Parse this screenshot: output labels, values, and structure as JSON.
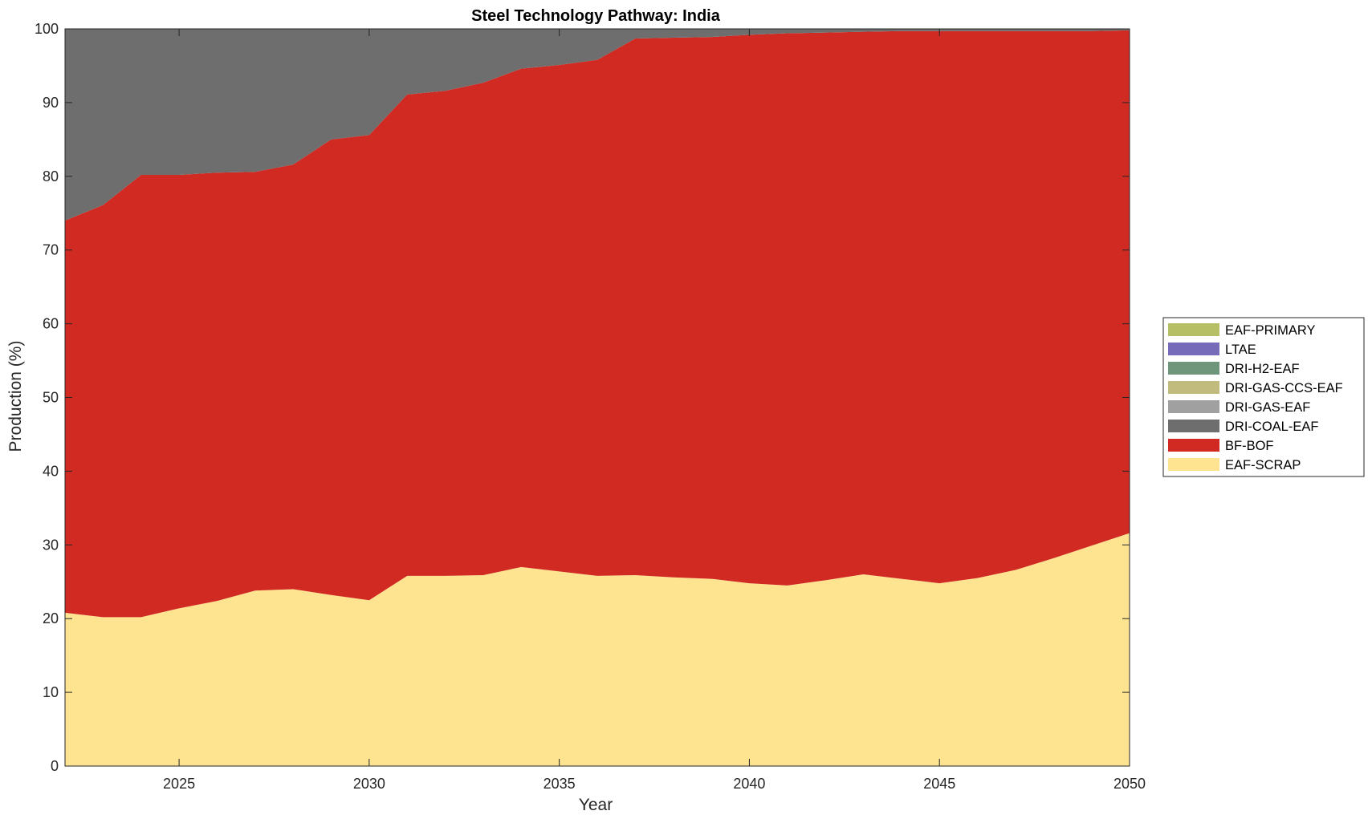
{
  "chart_data": {
    "type": "area",
    "stacked": true,
    "title": "Steel Technology Pathway: India",
    "xlabel": "Year",
    "ylabel": "Production (%)",
    "xlim": [
      2022,
      2050
    ],
    "ylim": [
      0,
      100
    ],
    "xticks": [
      2025,
      2030,
      2035,
      2040,
      2045,
      2050
    ],
    "yticks": [
      0,
      10,
      20,
      30,
      40,
      50,
      60,
      70,
      80,
      90,
      100
    ],
    "grid": false,
    "legend_position": "right",
    "x": [
      2022,
      2023,
      2024,
      2025,
      2026,
      2027,
      2028,
      2029,
      2030,
      2031,
      2032,
      2033,
      2034,
      2035,
      2036,
      2037,
      2038,
      2039,
      2040,
      2041,
      2042,
      2043,
      2044,
      2045,
      2046,
      2047,
      2048,
      2049,
      2050
    ],
    "series": [
      {
        "name": "EAF-SCRAP",
        "color": "#fee391",
        "values": [
          20.8,
          20.2,
          20.2,
          21.4,
          22.4,
          23.8,
          24.0,
          23.2,
          22.5,
          25.8,
          25.8,
          25.9,
          27.0,
          26.4,
          25.8,
          25.9,
          25.6,
          25.4,
          24.8,
          24.5,
          25.2,
          26.0,
          25.4,
          24.8,
          25.5,
          26.6,
          28.2,
          29.9,
          31.6
        ]
      },
      {
        "name": "BF-BOF",
        "color": "#d12a23",
        "values": [
          53.2,
          55.9,
          60.0,
          58.8,
          58.1,
          56.8,
          57.6,
          61.8,
          63.1,
          65.3,
          65.8,
          66.8,
          67.6,
          68.7,
          70.0,
          72.8,
          73.2,
          73.5,
          74.4,
          74.9,
          74.3,
          73.6,
          74.3,
          74.9,
          74.2,
          73.1,
          71.5,
          69.8,
          68.2
        ]
      },
      {
        "name": "DRI-COAL-EAF",
        "color": "#6e6e6e",
        "values": [
          26.0,
          23.9,
          19.8,
          19.8,
          19.5,
          19.4,
          18.4,
          15.0,
          14.4,
          8.9,
          8.4,
          7.3,
          5.4,
          4.9,
          4.2,
          1.3,
          1.2,
          1.1,
          0.8,
          0.6,
          0.5,
          0.4,
          0.3,
          0.3,
          0.3,
          0.3,
          0.3,
          0.3,
          0.2
        ]
      },
      {
        "name": "DRI-GAS-EAF",
        "color": "#a0a0a0",
        "values": [
          0,
          0,
          0,
          0,
          0,
          0,
          0,
          0,
          0,
          0,
          0,
          0,
          0,
          0,
          0,
          0,
          0,
          0,
          0,
          0,
          0,
          0,
          0,
          0,
          0,
          0,
          0,
          0,
          0
        ]
      },
      {
        "name": "DRI-GAS-CCS-EAF",
        "color": "#c2bb7e",
        "values": [
          0,
          0,
          0,
          0,
          0,
          0,
          0,
          0,
          0,
          0,
          0,
          0,
          0,
          0,
          0,
          0,
          0,
          0,
          0,
          0,
          0,
          0,
          0,
          0,
          0,
          0,
          0,
          0,
          0
        ]
      },
      {
        "name": "DRI-H2-EAF",
        "color": "#6f967a",
        "values": [
          0,
          0,
          0,
          0,
          0,
          0,
          0,
          0,
          0,
          0,
          0,
          0,
          0,
          0,
          0,
          0,
          0,
          0,
          0,
          0,
          0,
          0,
          0,
          0,
          0,
          0,
          0,
          0,
          0
        ]
      },
      {
        "name": "LTAE",
        "color": "#756bb8",
        "values": [
          0,
          0,
          0,
          0,
          0,
          0,
          0,
          0,
          0,
          0,
          0,
          0,
          0,
          0,
          0,
          0,
          0,
          0,
          0,
          0,
          0,
          0,
          0,
          0,
          0,
          0,
          0,
          0,
          0
        ]
      },
      {
        "name": "EAF-PRIMARY",
        "color": "#b7bf66",
        "values": [
          0,
          0,
          0,
          0,
          0,
          0,
          0,
          0,
          0,
          0,
          0,
          0,
          0,
          0,
          0,
          0,
          0,
          0,
          0,
          0,
          0,
          0,
          0,
          0,
          0,
          0,
          0,
          0,
          0
        ]
      }
    ],
    "legend_order": [
      "EAF-PRIMARY",
      "LTAE",
      "DRI-H2-EAF",
      "DRI-GAS-CCS-EAF",
      "DRI-GAS-EAF",
      "DRI-COAL-EAF",
      "BF-BOF",
      "EAF-SCRAP"
    ]
  }
}
